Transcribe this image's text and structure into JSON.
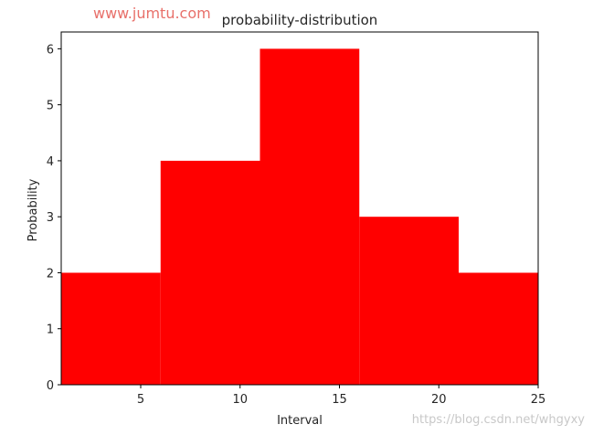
{
  "watermarks": {
    "top_left": "www.jumtu.com",
    "bottom_right": "https://blog.csdn.net/whgyxy",
    "top_color": "#e8706a",
    "bottom_color": "#c8c8c8"
  },
  "colors": {
    "bar_fill": "#ff0000",
    "axis": "#000000",
    "text": "#262626"
  },
  "chart_data": {
    "type": "bar",
    "title": "probability-distribution",
    "xlabel": "Interval",
    "ylabel": "Probability",
    "bins": [
      {
        "x0": 1,
        "x1": 6,
        "value": 2
      },
      {
        "x0": 6,
        "x1": 11,
        "value": 4
      },
      {
        "x0": 11,
        "x1": 16,
        "value": 6
      },
      {
        "x0": 16,
        "x1": 21,
        "value": 3
      },
      {
        "x0": 21,
        "x1": 25,
        "value": 2
      }
    ],
    "xlim": [
      1,
      25
    ],
    "ylim": [
      0,
      6.3
    ],
    "xticks": [
      5,
      10,
      15,
      20,
      25
    ],
    "yticks": [
      0,
      1,
      2,
      3,
      4,
      5,
      6
    ],
    "grid": false
  }
}
